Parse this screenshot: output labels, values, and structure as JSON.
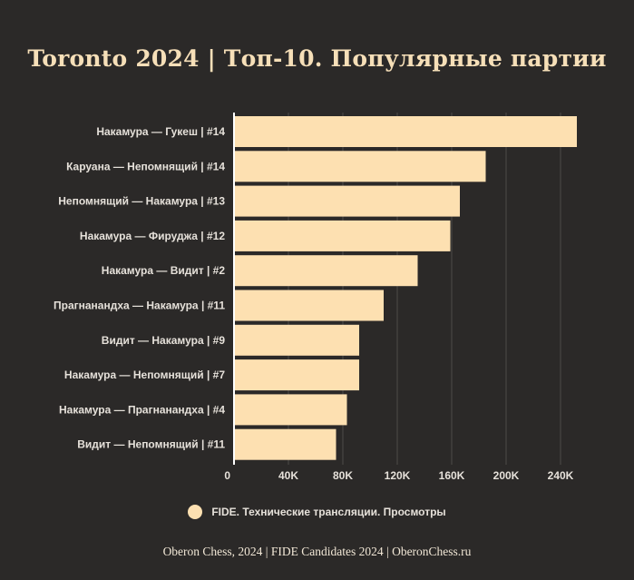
{
  "title": "Toronto 2024  |  Топ-10. Популярные партии",
  "footer": "Oberon Chess, 2024   |   FIDE Candidates 2024   |   OberonChess.ru",
  "legend": {
    "label": "FIDE. Технические трансляции. Просмотры",
    "color": "#fde0b1"
  },
  "chart_data": {
    "type": "bar",
    "orientation": "horizontal",
    "title": "Toronto 2024  |  Топ-10. Популярные партии",
    "xlabel": "",
    "ylabel": "",
    "categories": [
      "Накамура — Гукеш | #14",
      "Каруана — Непомнящий | #14",
      "Непомнящий — Накамура | #13",
      "Накамура — Фируджа | #12",
      "Накамура — Видит | #2",
      "Прагнанандха — Накамура | #11",
      "Видит — Накамура | #9",
      "Накамура — Непомнящий | #7",
      "Накамура — Прагнанандха | #4",
      "Видит — Непомнящий | #11"
    ],
    "series": [
      {
        "name": "FIDE. Технические трансляции. Просмотры",
        "values": [
          252000,
          185000,
          166000,
          159000,
          135000,
          110000,
          92000,
          92000,
          83000,
          75000
        ]
      }
    ],
    "xlim": [
      0,
      270000
    ],
    "x_ticks": [
      0,
      40000,
      80000,
      120000,
      160000,
      200000,
      240000
    ],
    "x_tick_labels": [
      "0",
      "40K",
      "80K",
      "120K",
      "160K",
      "200K",
      "240K"
    ],
    "grid": true,
    "legend_position": "bottom",
    "bar_color": "#fde0b1"
  }
}
